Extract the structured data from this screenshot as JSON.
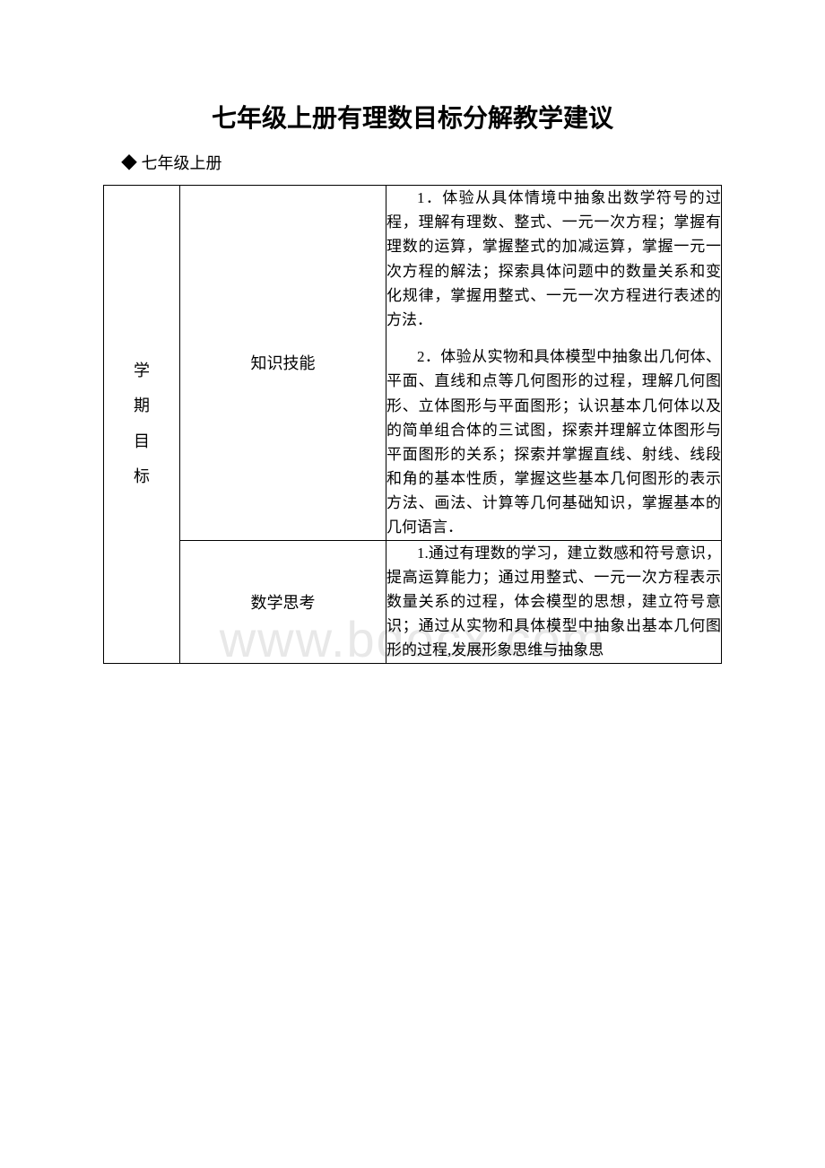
{
  "document": {
    "title": "七年级上册有理数目标分解教学建议",
    "subtitle": "◆ 七年级上册",
    "watermark": "www.bdocx.com"
  },
  "table": {
    "rowGroupLabel": [
      "学",
      "期",
      "目",
      "标"
    ],
    "rows": [
      {
        "category": "知识技能",
        "paragraphs": [
          "1．体验从具体情境中抽象出数学符号的过程，理解有理数、整式、一元一次方程；掌握有理数的运算，掌握整式的加减运算，掌握一元一次方程的解法；探索具体问题中的数量关系和变化规律，掌握用整式、一元一次方程进行表述的方法．",
          "2．体验从实物和具体模型中抽象出几何体、平面、直线和点等几何图形的过程，理解几何图形、立体图形与平面图形；认识基本几何体以及的简单组合体的三试图，探索并理解立体图形与平面图形的关系；探索并掌握直线、射线、线段和角的基本性质，掌握这些基本几何图形的表示方法、画法、计算等几何基础知识，掌握基本的几何语言．"
        ]
      },
      {
        "category": "数学思考",
        "paragraphs": [
          "1.通过有理数的学习，建立数感和符号意识，提高运算能力；通过用整式、一元一次方程表示数量关系的过程，体会模型的思想，建立符号意识；通过从实物和具体模型中抽象出基本几何图形的过程,发展形象思维与抽象思"
        ]
      }
    ]
  },
  "styles": {
    "title_fontsize": 28,
    "subtitle_fontsize": 18,
    "body_fontsize": 17,
    "category_fontsize": 18,
    "text_color": "#000000",
    "border_color": "#000000",
    "background_color": "#ffffff",
    "watermark_color": "#e8e8e8",
    "watermark_fontsize": 56
  }
}
